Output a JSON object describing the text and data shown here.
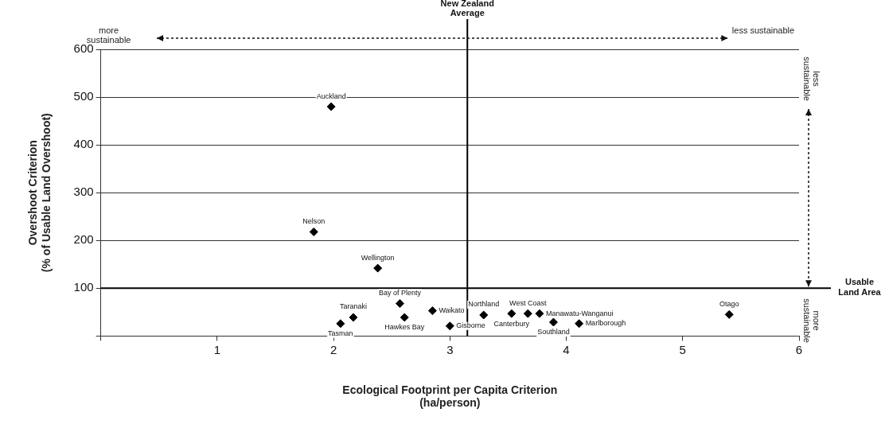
{
  "chart_data": {
    "type": "scatter",
    "xlabel": "Ecological Footprint per Capita Criterion\n(ha/person)",
    "ylabel": "Overshoot Criterion\n(% of Usable Land Overshoot)",
    "x": [
      1.98,
      1.83,
      2.38,
      2.57,
      2.85,
      2.17,
      2.61,
      2.06,
      3.0,
      3.29,
      3.53,
      3.67,
      3.77,
      3.89,
      4.11,
      5.4
    ],
    "values": [
      480,
      218,
      142,
      68,
      53,
      39,
      39,
      26,
      21,
      44,
      47,
      47,
      47,
      29,
      26,
      45
    ],
    "value_labels": [
      "Auckland",
      "Nelson",
      "Wellington",
      "Bay of Plenty",
      "Waikato",
      "Taranaki",
      "Hawkes Bay",
      "Tasman",
      "Gisborne",
      "Northland",
      "Canterbury",
      "West Coast",
      "Manawatu-Wanganui",
      "Southland",
      "Marlborough",
      "Otago"
    ],
    "color": "#000000",
    "marker": "diamond",
    "xlim": [
      0,
      6
    ],
    "xticks": [
      {
        "value": 0,
        "label": null
      },
      1,
      2,
      3,
      4,
      5,
      6
    ],
    "ylim": [
      0,
      600
    ],
    "yticks": [
      {
        "value": 0,
        "label": null
      },
      100,
      200,
      300,
      400,
      500,
      600
    ],
    "grid": "y",
    "legend": false,
    "ref_lines": [
      {
        "axis": "x",
        "value": 3.15,
        "label": "New Zealand Average",
        "color": "#000000"
      },
      {
        "axis": "y",
        "value": 100,
        "label": "Usable Land Area",
        "color": "#000000"
      }
    ],
    "annotations": [
      "more sustainable",
      "less sustainable",
      "less sustainable",
      "more sustainable"
    ]
  }
}
